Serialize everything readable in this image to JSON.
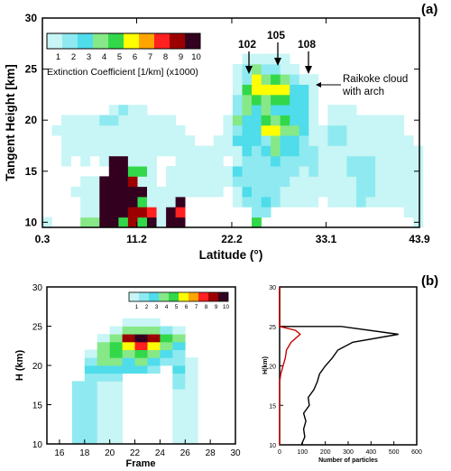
{
  "panel_labels": [
    "(a)",
    "(b)"
  ],
  "palette": [
    "#ffffff",
    "#c8f5f5",
    "#8eeaf0",
    "#4fdceb",
    "#87e887",
    "#32d84a",
    "#ffff00",
    "#ffa500",
    "#ff2020",
    "#9c0000",
    "#34001f"
  ],
  "chart_data": [
    {
      "type": "heatmap",
      "panel": "(a)",
      "xlabel": "Latitude (°)",
      "ylabel": "Tangent Height [km]",
      "xticks": [
        "0.3",
        "11.2",
        "22.2",
        "33.1",
        "43.9"
      ],
      "yticks": [
        "10",
        "15",
        "20",
        "25",
        "30"
      ],
      "xlim": [
        0.3,
        43.9
      ],
      "ylim": [
        9.5,
        30
      ],
      "colorbar": {
        "label": "Extinction Coefficient  [1/km] (x1000)",
        "ticks": [
          "1",
          "2",
          "3",
          "4",
          "5",
          "6",
          "7",
          "8",
          "9",
          "10"
        ]
      },
      "frame_labels": [
        "102",
        "105",
        "108"
      ],
      "frame_label_latitudes": [
        24.9,
        27.6,
        30.6
      ],
      "annotation": "Raikoke cloud with arch",
      "grid_x_start": 0.3,
      "grid_x_step": 1.1,
      "grid_y_start": 9.5,
      "grid_y_step": 1,
      "columns_level_by_altitude": [
        [
          1,
          0,
          0,
          0,
          0,
          0,
          0,
          0,
          0,
          0,
          0,
          0,
          0,
          0,
          0,
          0,
          0
        ],
        [
          0,
          0,
          0,
          0,
          0,
          0,
          0,
          0,
          0,
          1,
          0,
          0,
          0,
          0,
          0,
          0,
          0
        ],
        [
          0,
          0,
          0,
          0,
          0,
          0,
          1,
          1,
          1,
          1,
          1,
          0,
          0,
          0,
          0,
          0,
          0
        ],
        [
          0,
          0,
          0,
          1,
          0,
          0,
          0,
          1,
          1,
          1,
          1,
          0,
          0,
          0,
          0,
          0,
          0
        ],
        [
          4,
          1,
          1,
          1,
          1,
          0,
          1,
          1,
          1,
          1,
          1,
          0,
          0,
          0,
          0,
          0,
          0
        ],
        [
          4,
          1,
          1,
          1,
          1,
          0,
          0,
          1,
          1,
          1,
          1,
          0,
          0,
          0,
          0,
          0,
          0
        ],
        [
          10,
          10,
          10,
          10,
          10,
          0,
          1,
          1,
          1,
          1,
          2,
          0,
          0,
          0,
          0,
          0,
          0
        ],
        [
          10,
          10,
          10,
          10,
          10,
          10,
          10,
          1,
          1,
          1,
          2,
          1,
          0,
          0,
          0,
          0,
          0
        ],
        [
          5,
          10,
          10,
          10,
          10,
          10,
          10,
          1,
          1,
          1,
          1,
          2,
          0,
          0,
          0,
          0,
          0
        ],
        [
          9,
          9,
          10,
          10,
          9,
          5,
          1,
          1,
          1,
          1,
          1,
          1,
          0,
          0,
          0,
          0,
          0
        ],
        [
          5,
          9,
          5,
          10,
          1,
          5,
          1,
          1,
          1,
          1,
          1,
          1,
          0,
          0,
          0,
          0,
          0
        ],
        [
          10,
          8,
          1,
          1,
          1,
          1,
          1,
          1,
          1,
          1,
          1,
          0,
          0,
          0,
          0,
          0,
          0
        ],
        [
          1,
          1,
          1,
          1,
          0,
          0,
          0,
          1,
          1,
          1,
          1,
          0,
          0,
          0,
          0,
          0,
          0
        ],
        [
          10,
          10,
          1,
          1,
          1,
          1,
          0,
          1,
          1,
          1,
          1,
          0,
          0,
          0,
          0,
          0,
          0
        ],
        [
          10,
          8,
          10,
          1,
          1,
          1,
          1,
          1,
          1,
          1,
          0,
          0,
          0,
          0,
          0,
          0,
          0
        ],
        [
          0,
          0,
          0,
          1,
          1,
          1,
          1,
          1,
          1,
          0,
          0,
          0,
          0,
          0,
          0,
          0,
          0
        ],
        [
          0,
          0,
          0,
          1,
          1,
          1,
          1,
          1,
          0,
          0,
          0,
          0,
          0,
          0,
          0,
          0,
          0
        ],
        [
          0,
          0,
          0,
          1,
          1,
          1,
          1,
          1,
          0,
          0,
          0,
          0,
          0,
          0,
          0,
          0,
          0
        ],
        [
          0,
          0,
          0,
          1,
          1,
          1,
          1,
          1,
          1,
          0,
          0,
          0,
          0,
          0,
          0,
          0,
          0
        ],
        [
          0,
          0,
          0,
          0,
          1,
          1,
          0,
          1,
          1,
          1,
          1,
          0,
          0,
          0,
          0,
          0,
          0
        ],
        [
          0,
          0,
          1,
          1,
          2,
          3,
          1,
          1,
          3,
          2,
          4,
          2,
          2,
          1,
          1,
          1,
          0
        ],
        [
          0,
          0,
          2,
          3,
          2,
          2,
          2,
          3,
          3,
          3,
          3,
          4,
          4,
          5,
          2,
          2,
          1
        ],
        [
          5,
          2,
          2,
          2,
          2,
          2,
          2,
          2,
          3,
          3,
          3,
          3,
          5,
          6,
          6,
          4,
          1
        ],
        [
          0,
          2,
          3,
          2,
          2,
          2,
          2,
          3,
          2,
          6,
          5,
          4,
          4,
          6,
          4,
          2,
          1
        ],
        [
          0,
          0,
          2,
          2,
          2,
          2,
          3,
          4,
          4,
          6,
          4,
          3,
          5,
          6,
          5,
          2,
          1
        ],
        [
          0,
          0,
          1,
          1,
          2,
          2,
          2,
          3,
          3,
          4,
          5,
          3,
          5,
          6,
          4,
          1,
          1
        ],
        [
          0,
          0,
          1,
          1,
          1,
          2,
          2,
          3,
          3,
          4,
          3,
          3,
          3,
          3,
          2,
          1,
          0
        ],
        [
          0,
          0,
          1,
          1,
          1,
          1,
          2,
          2,
          2,
          3,
          3,
          3,
          3,
          3,
          1,
          0,
          0
        ],
        [
          0,
          0,
          1,
          1,
          1,
          2,
          2,
          2,
          1,
          1,
          1,
          1,
          1,
          1,
          1,
          0,
          0
        ],
        [
          0,
          0,
          0,
          1,
          1,
          1,
          1,
          1,
          1,
          1,
          0,
          0,
          0,
          0,
          0,
          0,
          0
        ],
        [
          0,
          0,
          1,
          1,
          1,
          1,
          1,
          1,
          2,
          2,
          1,
          1,
          0,
          0,
          0,
          0,
          0
        ],
        [
          0,
          0,
          1,
          1,
          1,
          1,
          1,
          1,
          2,
          2,
          1,
          1,
          0,
          0,
          0,
          0,
          0
        ],
        [
          0,
          0,
          1,
          1,
          1,
          2,
          2,
          1,
          1,
          1,
          1,
          1,
          0,
          0,
          0,
          0,
          0
        ],
        [
          0,
          0,
          2,
          2,
          2,
          2,
          2,
          1,
          1,
          1,
          1,
          0,
          0,
          0,
          0,
          0,
          0
        ],
        [
          0,
          0,
          1,
          2,
          2,
          2,
          2,
          1,
          1,
          1,
          1,
          0,
          0,
          0,
          0,
          0,
          0
        ],
        [
          0,
          0,
          1,
          1,
          1,
          1,
          1,
          1,
          1,
          1,
          1,
          0,
          0,
          0,
          0,
          0,
          0
        ],
        [
          0,
          0,
          1,
          1,
          1,
          1,
          1,
          1,
          1,
          1,
          1,
          0,
          0,
          0,
          0,
          0,
          0
        ],
        [
          0,
          0,
          1,
          1,
          1,
          1,
          1,
          1,
          1,
          1,
          1,
          0,
          0,
          0,
          0,
          0,
          0
        ],
        [
          0,
          1,
          1,
          1,
          1,
          1,
          1,
          1,
          1,
          0,
          0,
          0,
          0,
          0,
          0,
          0,
          0
        ],
        [
          1,
          1,
          1,
          1,
          1,
          1,
          1,
          1,
          0,
          0,
          0,
          0,
          0,
          0,
          0,
          0,
          0
        ]
      ]
    },
    {
      "type": "heatmap",
      "panel": "(b) left",
      "xlabel": "Frame",
      "ylabel": "H (km)",
      "xticks": [
        "16",
        "18",
        "20",
        "22",
        "24",
        "26",
        "28",
        "30"
      ],
      "yticks": [
        "10",
        "15",
        "20",
        "25",
        "30"
      ],
      "xlim": [
        15,
        30
      ],
      "ylim": [
        10,
        30
      ],
      "colorbar_ticks": [
        "1",
        "2",
        "3",
        "4",
        "5",
        "6",
        "7",
        "8",
        "9",
        "10"
      ],
      "grid_x_start": 17,
      "grid_x_step": 1,
      "grid_y_start": 10,
      "grid_y_step": 1,
      "columns_level_by_altitude": [
        [
          2,
          2,
          2,
          2,
          2,
          2,
          2,
          2,
          0,
          0,
          0,
          0,
          0,
          0,
          0,
          0
        ],
        [
          2,
          2,
          2,
          2,
          2,
          2,
          2,
          2,
          2,
          3,
          2,
          1,
          0,
          0,
          0,
          0
        ],
        [
          1,
          1,
          1,
          1,
          1,
          1,
          1,
          1,
          2,
          3,
          4,
          4,
          4,
          1,
          0,
          0
        ],
        [
          1,
          1,
          1,
          1,
          1,
          1,
          1,
          1,
          2,
          3,
          4,
          5,
          5,
          4,
          1,
          0
        ],
        [
          0,
          0,
          0,
          0,
          0,
          0,
          0,
          0,
          0,
          3,
          3,
          4,
          6,
          9,
          4,
          1
        ],
        [
          0,
          0,
          0,
          0,
          0,
          0,
          0,
          0,
          0,
          3,
          4,
          5,
          8,
          10,
          4,
          1
        ],
        [
          0,
          0,
          0,
          0,
          0,
          0,
          0,
          0,
          0,
          2,
          3,
          4,
          6,
          9,
          4,
          1
        ],
        [
          0,
          0,
          0,
          0,
          0,
          0,
          0,
          0,
          0,
          0,
          2,
          3,
          4,
          5,
          2,
          0
        ],
        [
          1,
          1,
          1,
          1,
          1,
          1,
          1,
          2,
          2,
          3,
          2,
          2,
          3,
          4,
          1,
          0
        ],
        [
          1,
          1,
          1,
          1,
          1,
          1,
          1,
          1,
          1,
          1,
          1,
          0,
          0,
          0,
          0,
          0
        ]
      ]
    },
    {
      "type": "line",
      "panel": "(b) right",
      "xlabel": "Number of particles",
      "ylabel": "H(km)",
      "xticks": [
        "0",
        "100",
        "200",
        "300",
        "400",
        "500",
        "600"
      ],
      "yticks": [
        "10",
        "15",
        "20",
        "25",
        "30"
      ],
      "xlim": [
        0,
        600
      ],
      "ylim": [
        10,
        30
      ],
      "series": [
        {
          "color": "#000000",
          "points": [
            [
              95,
              10
            ],
            [
              110,
              11
            ],
            [
              105,
              12
            ],
            [
              115,
              13
            ],
            [
              105,
              14
            ],
            [
              130,
              15
            ],
            [
              125,
              16
            ],
            [
              150,
              17
            ],
            [
              165,
              18
            ],
            [
              175,
              19
            ],
            [
              200,
              20
            ],
            [
              230,
              21
            ],
            [
              255,
              22
            ],
            [
              320,
              23
            ],
            [
              520,
              24
            ],
            [
              270,
              25
            ],
            [
              0,
              25
            ],
            [
              0,
              30
            ]
          ]
        },
        {
          "color": "#cc0000",
          "points": [
            [
              0,
              10
            ],
            [
              0,
              18
            ],
            [
              5,
              19
            ],
            [
              15,
              20
            ],
            [
              25,
              21
            ],
            [
              30,
              22
            ],
            [
              50,
              23
            ],
            [
              90,
              24
            ],
            [
              70,
              24.5
            ],
            [
              0,
              25
            ],
            [
              0,
              30
            ]
          ]
        }
      ]
    }
  ]
}
